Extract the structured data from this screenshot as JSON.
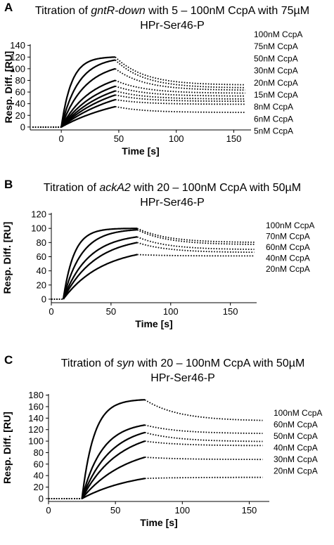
{
  "chart_data": [
    {
      "type": "line",
      "panel": "A",
      "title_prefix": "Titration of ",
      "title_italic": "gntR-down",
      "title_suffix": " with 5 – 100nM CcpA with 75µM",
      "title_line2": "HPr-Ser46-P",
      "xlabel": "Time [s]",
      "ylabel": "Resp. Diff. [RU]",
      "xlim": [
        -27,
        165
      ],
      "ylim": [
        -5,
        142
      ],
      "xticks": [
        0,
        50,
        100,
        150
      ],
      "xtick_labels": [
        "0",
        "50",
        "100",
        "150"
      ],
      "yticks": [
        0,
        20,
        40,
        60,
        80,
        100,
        120,
        140
      ],
      "ytick_labels": [
        "0",
        "20",
        "40",
        "60",
        "80",
        "100",
        "120",
        "140"
      ],
      "legend": [
        "100nM CcpA",
        "75nM CcpA",
        "50nM CcpA",
        "30nM CcpA",
        "20nM CcpA",
        "15nM CcpA",
        "8nM CcpA",
        "6nM CcpA",
        "5nM CcpA"
      ],
      "legend_placement": "right",
      "grid": false,
      "injection": {
        "start": 0,
        "end": 47,
        "baseline_start": -25,
        "end_time": 160
      },
      "series": [
        {
          "name": "100nM CcpA",
          "peak": 120,
          "final": 72
        },
        {
          "name": "75nM CcpA",
          "peak": 115,
          "final": 67
        },
        {
          "name": "50nM CcpA",
          "peak": 100,
          "final": 63
        },
        {
          "name": "30nM CcpA",
          "peak": 80,
          "final": 58
        },
        {
          "name": "20nM CcpA",
          "peak": 70,
          "final": 53
        },
        {
          "name": "15nM CcpA",
          "peak": 62,
          "final": 48
        },
        {
          "name": "8nM CcpA",
          "peak": 55,
          "final": 44
        },
        {
          "name": "6nM CcpA",
          "peak": 47,
          "final": 39
        },
        {
          "name": "5nM CcpA",
          "peak": 35,
          "final": 25
        }
      ]
    },
    {
      "type": "line",
      "panel": "B",
      "title_prefix": "Titration of ",
      "title_italic": "ackA2",
      "title_suffix": " with 20 – 100nM CcpA with 50µM",
      "title_line2": "HPr-Ser46-P",
      "xlabel": "Time [s]",
      "ylabel": "Resp. Diff. [RU]",
      "xlim": [
        0,
        172
      ],
      "ylim": [
        -5,
        122
      ],
      "xticks": [
        0,
        50,
        100,
        150
      ],
      "xtick_labels": [
        "0",
        "50",
        "100",
        "150"
      ],
      "yticks": [
        0,
        20,
        40,
        60,
        80,
        100,
        120
      ],
      "ytick_labels": [
        "0",
        "20",
        "40",
        "60",
        "80",
        "100",
        "120"
      ],
      "legend": [
        "100nM CcpA",
        "70nM CcpA",
        "60nM CcpA",
        "40nM CcpA",
        "20nM CcpA"
      ],
      "legend_placement": "right",
      "grid": false,
      "injection": {
        "start": 10,
        "end": 72,
        "baseline_start": 0,
        "end_time": 170
      },
      "series": [
        {
          "name": "100nM CcpA",
          "peak": 100,
          "final": 80
        },
        {
          "name": "70nM CcpA",
          "peak": 98,
          "final": 77
        },
        {
          "name": "60nM CcpA",
          "peak": 88,
          "final": 70
        },
        {
          "name": "40nM CcpA",
          "peak": 80,
          "final": 66
        },
        {
          "name": "20nM CcpA",
          "peak": 63,
          "final": 61
        }
      ]
    },
    {
      "type": "line",
      "panel": "C",
      "title_prefix": "Titration of ",
      "title_italic": "syn",
      "title_suffix": " with 20 – 100nM CcpA with 50µM",
      "title_line2": "HPr-Ser46-P",
      "xlabel": "Time [s]",
      "ylabel": "Resp. Diff. [RU]",
      "xlim": [
        0,
        165
      ],
      "ylim": [
        -5,
        182
      ],
      "xticks": [
        0,
        50,
        100,
        150
      ],
      "xtick_labels": [
        "0",
        "50",
        "100",
        "150"
      ],
      "yticks": [
        0,
        20,
        40,
        60,
        80,
        100,
        120,
        140,
        160,
        180
      ],
      "ytick_labels": [
        "0",
        "20",
        "40",
        "60",
        "80",
        "100",
        "120",
        "140",
        "160",
        "180"
      ],
      "legend": [
        "100nM CcpA",
        "60nM CcpA",
        "50nM CcpA",
        "40nM CcpA",
        "30nM CcpA",
        "20nM CcpA"
      ],
      "legend_placement": "right",
      "grid": false,
      "injection": {
        "start": 25,
        "end": 72,
        "baseline_start": 0,
        "end_time": 160
      },
      "series": [
        {
          "name": "100nM CcpA",
          "peak": 172,
          "final": 135
        },
        {
          "name": "60nM CcpA",
          "peak": 128,
          "final": 113
        },
        {
          "name": "50nM CcpA",
          "peak": 115,
          "final": 99
        },
        {
          "name": "40nM CcpA",
          "peak": 100,
          "final": 92
        },
        {
          "name": "30nM CcpA",
          "peak": 72,
          "final": 68
        },
        {
          "name": "20nM CcpA",
          "peak": 35,
          "final": 37
        }
      ]
    }
  ]
}
